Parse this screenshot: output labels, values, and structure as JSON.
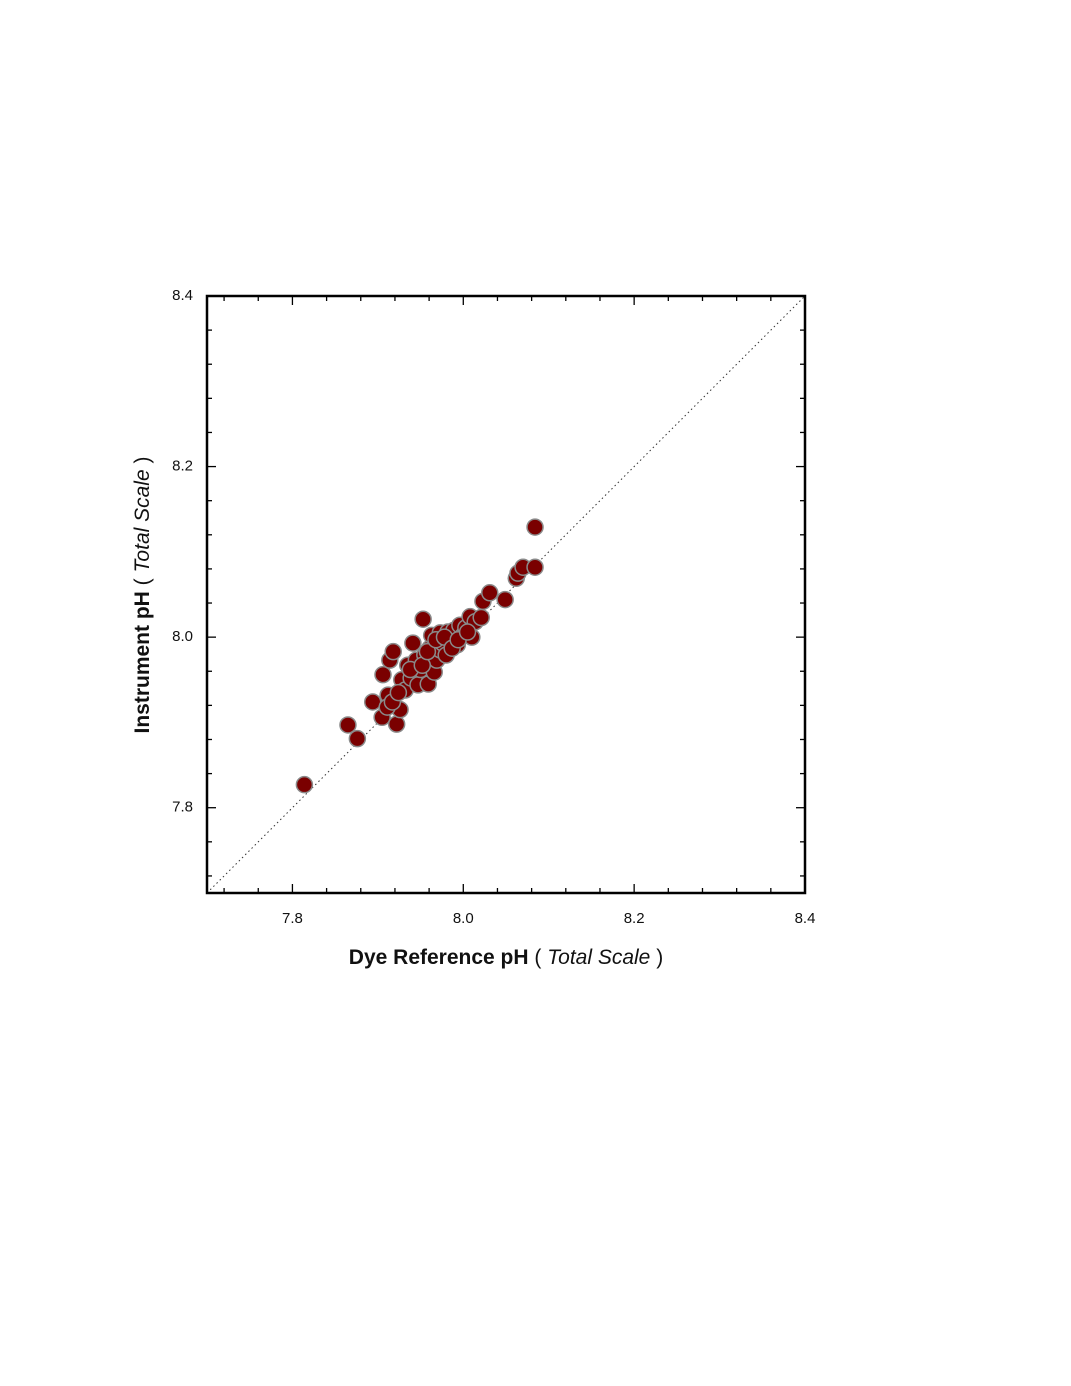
{
  "chart_data": {
    "type": "scatter",
    "xlabel": [
      "Dye Reference pH",
      "(",
      "Total Scale",
      ")"
    ],
    "ylabel": [
      "Instrument pH",
      "(",
      "Total Scale",
      ")"
    ],
    "xlim": [
      7.7,
      8.4
    ],
    "ylim": [
      7.7,
      8.4
    ],
    "xticks": [
      7.8,
      {
        "value": 8,
        "label": "8.0"
      },
      8.2,
      8.4
    ],
    "yticks": [
      7.8,
      {
        "value": 8,
        "label": "8.0"
      },
      8.2,
      8.4
    ],
    "xminorticks": [
      7.72,
      7.76,
      7.84,
      7.88,
      7.92,
      7.96,
      8.04,
      8.08,
      8.12,
      8.16,
      8.24,
      8.28,
      8.32,
      8.36
    ],
    "yminorticks": [
      7.72,
      7.76,
      7.84,
      7.88,
      7.92,
      7.96,
      8.04,
      8.08,
      8.12,
      8.16,
      8.24,
      8.28,
      8.32,
      8.36
    ],
    "color": "#7a0000",
    "identity_line": true,
    "x": [
      7.814,
      7.865,
      7.876,
      7.894,
      7.905,
      7.906,
      7.912,
      7.914,
      7.918,
      7.922,
      7.926,
      7.928,
      7.932,
      7.935,
      7.939,
      7.941,
      7.945,
      7.947,
      7.95,
      7.953,
      7.955,
      7.959,
      7.959,
      7.961,
      7.963,
      7.966,
      7.969,
      7.973,
      7.973,
      7.976,
      7.98,
      7.982,
      7.986,
      7.989,
      7.993,
      7.996,
      8.0,
      8.003,
      8.008,
      8.01,
      8.014,
      8.021,
      8.023,
      8.031,
      8.049,
      8.062,
      8.064,
      8.07,
      8.084,
      8.084,
      7.911,
      7.917,
      7.924,
      7.938,
      7.952,
      7.958,
      7.968,
      7.978,
      7.987,
      7.994,
      8.005
    ],
    "values": [
      7.827,
      7.897,
      7.881,
      7.924,
      7.906,
      7.956,
      7.932,
      7.973,
      7.983,
      7.898,
      7.915,
      7.95,
      7.938,
      7.967,
      7.952,
      7.993,
      7.973,
      7.944,
      7.962,
      8.021,
      7.979,
      7.945,
      7.967,
      7.987,
      8.002,
      7.959,
      7.973,
      7.985,
      8.005,
      7.993,
      7.979,
      8.006,
      7.997,
      8.008,
      7.991,
      8.014,
      8.002,
      8.011,
      8.024,
      8.0,
      8.018,
      8.023,
      8.042,
      8.052,
      8.044,
      8.069,
      8.075,
      8.082,
      8.082,
      8.129,
      7.918,
      7.924,
      7.935,
      7.962,
      7.967,
      7.983,
      7.997,
      8.0,
      7.987,
      7.997,
      8.006
    ]
  }
}
